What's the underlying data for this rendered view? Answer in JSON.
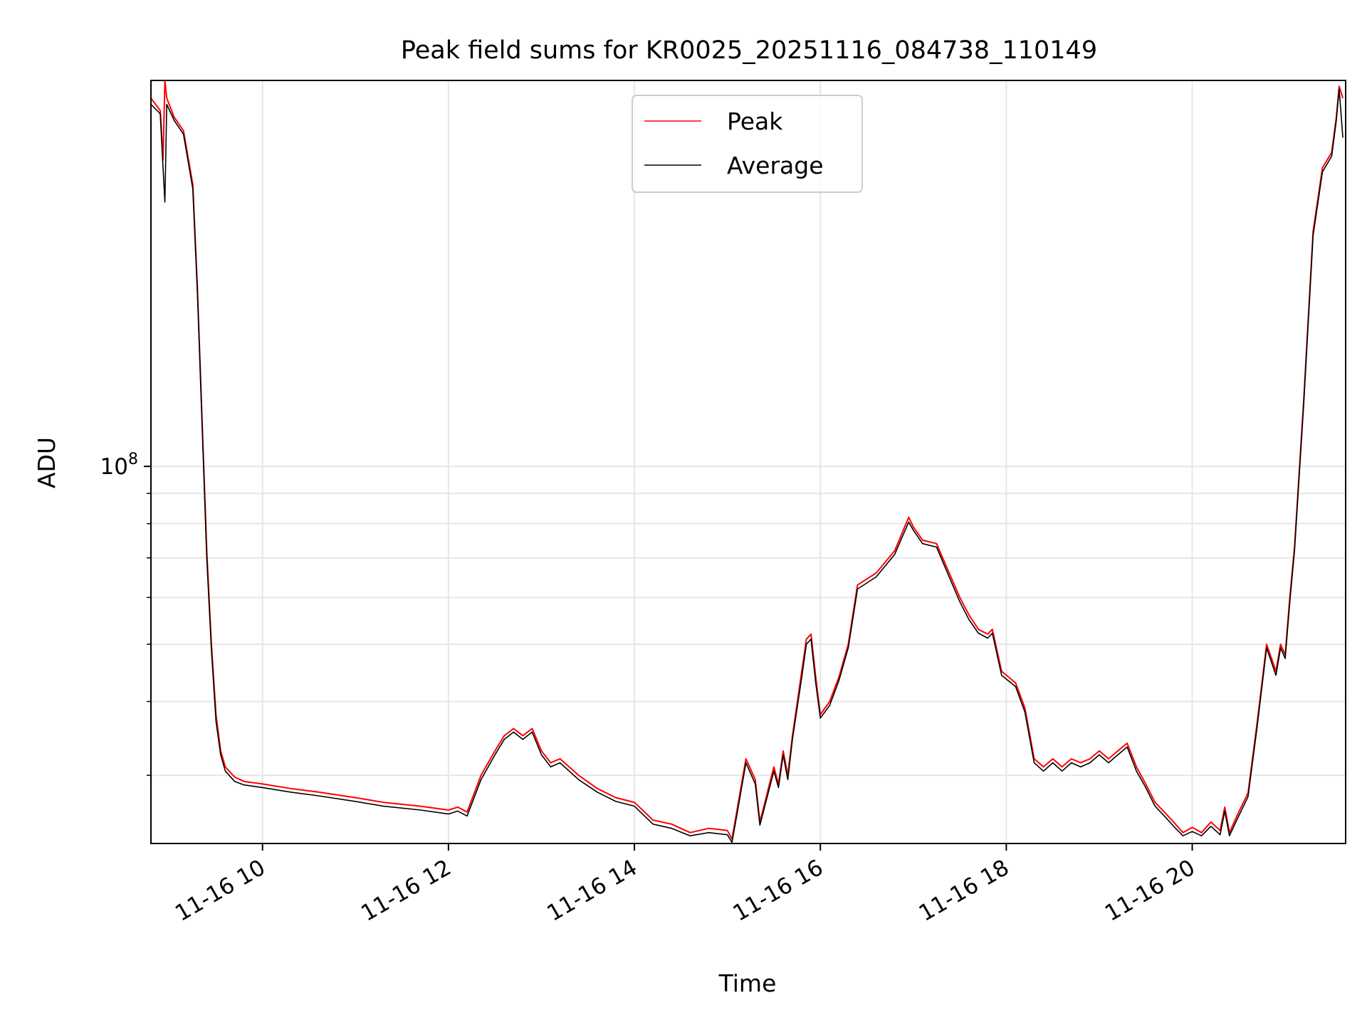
{
  "chart_data": {
    "type": "line",
    "title": "Peak field sums for KR0025_20251116_084738_110149",
    "xlabel": "Time",
    "ylabel": "ADU",
    "yscale": "log",
    "xlim": [
      8.8,
      21.65
    ],
    "ylim": [
      23000000,
      450000000
    ],
    "grid": true,
    "legend_location": "upper center",
    "x_ticks": [
      {
        "value": 10,
        "label": "11-16 10"
      },
      {
        "value": 12,
        "label": "11-16 12"
      },
      {
        "value": 14,
        "label": "11-16 14"
      },
      {
        "value": 16,
        "label": "11-16 16"
      },
      {
        "value": 18,
        "label": "11-16 18"
      },
      {
        "value": 20,
        "label": "11-16 20"
      }
    ],
    "y_major_tick": {
      "value": 100000000,
      "base": "10",
      "exponent": "8"
    },
    "y_minor_ticks": [
      30000000,
      40000000,
      50000000,
      60000000,
      70000000,
      80000000,
      90000000
    ],
    "x_unit": "hour of day (2025-11-16)",
    "x": [
      8.8,
      8.9,
      8.93,
      8.95,
      8.97,
      9.05,
      9.15,
      9.25,
      9.3,
      9.35,
      9.4,
      9.45,
      9.5,
      9.55,
      9.6,
      9.7,
      9.8,
      10.0,
      10.3,
      10.6,
      11.0,
      11.3,
      11.7,
      12.0,
      12.1,
      12.2,
      12.35,
      12.5,
      12.6,
      12.7,
      12.8,
      12.9,
      13.0,
      13.1,
      13.2,
      13.4,
      13.6,
      13.8,
      14.0,
      14.2,
      14.4,
      14.6,
      14.8,
      15.0,
      15.05,
      15.1,
      15.2,
      15.3,
      15.35,
      15.5,
      15.55,
      15.6,
      15.65,
      15.7,
      15.8,
      15.85,
      15.9,
      15.95,
      16.0,
      16.1,
      16.2,
      16.3,
      16.4,
      16.6,
      16.8,
      16.95,
      17.0,
      17.1,
      17.25,
      17.35,
      17.5,
      17.6,
      17.7,
      17.8,
      17.85,
      17.95,
      18.1,
      18.2,
      18.3,
      18.4,
      18.5,
      18.6,
      18.7,
      18.8,
      18.9,
      19.0,
      19.1,
      19.2,
      19.3,
      19.4,
      19.5,
      19.6,
      19.7,
      19.8,
      19.9,
      20.0,
      20.1,
      20.2,
      20.3,
      20.35,
      20.4,
      20.5,
      20.6,
      20.7,
      20.8,
      20.9,
      20.95,
      21.0,
      21.05,
      21.1,
      21.2,
      21.3,
      21.4,
      21.5,
      21.55,
      21.58,
      21.62
    ],
    "series": [
      {
        "name": "Peak",
        "color": "#ff0000",
        "values": [
          420000000,
          400000000,
          330000000,
          450000000,
          420000000,
          390000000,
          370000000,
          300000000,
          200000000,
          120000000,
          72000000,
          50000000,
          38000000,
          33000000,
          31000000,
          29800000,
          29300000,
          29000000,
          28500000,
          28100000,
          27500000,
          27000000,
          26600000,
          26200000,
          26500000,
          26000000,
          30000000,
          33000000,
          35000000,
          36000000,
          35000000,
          36000000,
          33000000,
          31500000,
          32000000,
          30000000,
          28500000,
          27500000,
          27000000,
          25200000,
          24800000,
          24000000,
          24400000,
          24200000,
          23400000,
          26000000,
          32000000,
          29500000,
          25000000,
          31000000,
          29000000,
          33000000,
          30000000,
          35000000,
          45000000,
          51000000,
          52000000,
          44000000,
          38000000,
          40000000,
          44000000,
          50000000,
          63000000,
          66000000,
          72000000,
          82000000,
          79000000,
          75000000,
          74000000,
          68000000,
          60000000,
          56000000,
          53000000,
          52000000,
          53000000,
          45000000,
          43000000,
          39000000,
          32000000,
          31000000,
          32000000,
          31000000,
          32000000,
          31500000,
          32000000,
          33000000,
          32000000,
          33000000,
          34000000,
          31000000,
          29000000,
          27000000,
          26000000,
          25000000,
          24000000,
          24500000,
          24000000,
          25000000,
          24200000,
          26500000,
          24000000,
          26000000,
          28000000,
          37000000,
          50000000,
          45000000,
          50000000,
          48000000,
          60000000,
          73000000,
          130000000,
          250000000,
          320000000,
          340000000,
          390000000,
          440000000,
          420000000
        ]
      },
      {
        "name": "Average",
        "color": "#000000",
        "values": [
          410000000,
          395000000,
          320000000,
          280000000,
          410000000,
          385000000,
          365000000,
          295000000,
          196000000,
          118000000,
          70000000,
          49000000,
          37000000,
          32500000,
          30500000,
          29300000,
          28900000,
          28600000,
          28100000,
          27700000,
          27100000,
          26600000,
          26200000,
          25800000,
          26100000,
          25600000,
          29500000,
          32500000,
          34500000,
          35500000,
          34500000,
          35500000,
          32500000,
          31000000,
          31500000,
          29500000,
          28100000,
          27100000,
          26600000,
          24800000,
          24400000,
          23700000,
          24000000,
          23800000,
          23100000,
          25600000,
          31500000,
          29000000,
          24700000,
          30500000,
          28600000,
          32500000,
          29500000,
          34500000,
          44000000,
          50000000,
          51000000,
          43000000,
          37500000,
          39400000,
          43400000,
          49300000,
          62000000,
          65000000,
          71000000,
          80500000,
          78000000,
          74000000,
          73000000,
          67000000,
          59000000,
          55000000,
          52200000,
          51200000,
          52200000,
          44300000,
          42400000,
          38400000,
          31500000,
          30500000,
          31500000,
          30500000,
          31500000,
          31000000,
          31500000,
          32500000,
          31500000,
          32500000,
          33500000,
          30500000,
          28600000,
          26600000,
          25600000,
          24600000,
          23700000,
          24100000,
          23700000,
          24600000,
          23800000,
          26100000,
          23700000,
          25600000,
          27600000,
          36400000,
          49300000,
          44300000,
          49300000,
          47300000,
          59000000,
          72000000,
          128000000,
          246000000,
          315000000,
          335000000,
          385000000,
          435000000,
          360000000
        ]
      }
    ]
  }
}
